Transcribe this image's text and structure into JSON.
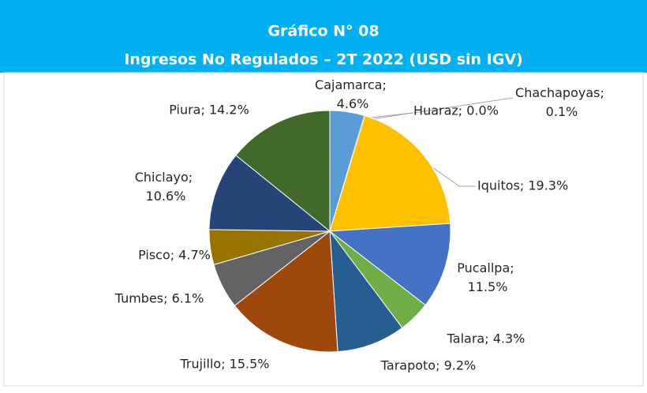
{
  "chart_data": {
    "type": "pie",
    "title": "Gráfico N° 08",
    "subtitle": "Ingresos No Regulados – 2T 2022 (USD sin IGV)",
    "values": [
      4.6,
      0.0,
      0.1,
      19.3,
      11.5,
      4.3,
      9.2,
      15.5,
      6.1,
      4.7,
      10.6,
      14.2
    ],
    "value_labels": [
      "Cajamarca; 4.6%",
      "Huaraz; 0.0%",
      "Chachapoyas; 0.1%",
      "Iquitos; 19.3%",
      "Pucallpa; 11.5%",
      "Talara; 4.3%",
      "Tarapoto; 9.2%",
      "Trujillo; 15.5%",
      "Tumbes; 6.1%",
      "Pisco; 4.7%",
      "Chiclayo; 10.6%",
      "Piura; 14.2%"
    ],
    "colors": [
      "#5b9bd5",
      "#a5a5a5",
      "#7f7f7f",
      "#ffc000",
      "#4472c4",
      "#70ad47",
      "#255e91",
      "#9e480e",
      "#636363",
      "#997300",
      "#264478",
      "#43682b"
    ]
  }
}
